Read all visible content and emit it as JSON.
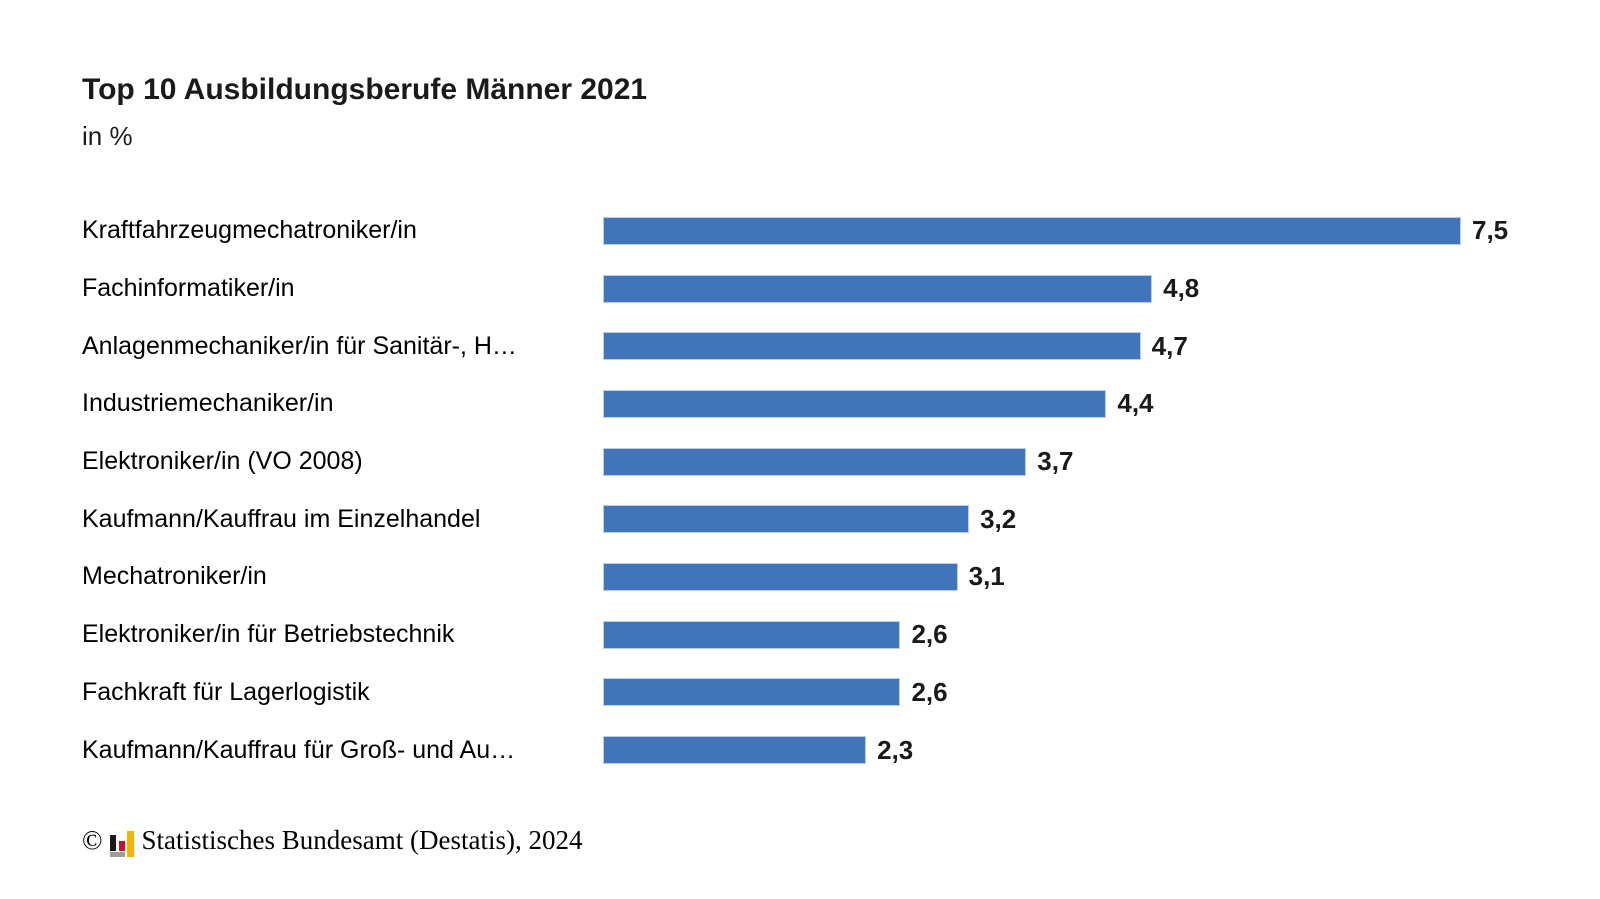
{
  "header": {
    "title": "Top 10 Ausbildungsberufe Männer 2021",
    "subtitle": "in %"
  },
  "chart_data": {
    "type": "bar",
    "orientation": "horizontal",
    "title": "Top 10 Ausbildungsberufe Männer 2021",
    "subtitle": "in %",
    "unit": "%",
    "xlabel": "",
    "ylabel": "",
    "xlim": [
      0,
      7.5
    ],
    "grid": false,
    "legend": false,
    "categories": [
      "Kraftfahrzeugmechatroniker/in",
      "Fachinformatiker/in",
      "Anlagenmechaniker/in für Sanitär-, H…",
      "Industriemechaniker/in",
      "Elektroniker/in (VO 2008)",
      "Kaufmann/Kauffrau im Einzelhandel",
      "Mechatroniker/in",
      "Elektroniker/in für Betriebstechnik",
      "Fachkraft für Lagerlogistik",
      "Kaufmann/Kauffrau für Groß- und Au…"
    ],
    "values": [
      7.5,
      4.8,
      4.7,
      4.4,
      3.7,
      3.2,
      3.1,
      2.6,
      2.6,
      2.3
    ],
    "value_labels": [
      "7,5",
      "4,8",
      "4,7",
      "4,4",
      "3,7",
      "3,2",
      "3,1",
      "2,6",
      "2,6",
      "2,3"
    ]
  },
  "colors": {
    "bar": "#4274b9",
    "bar_border": "#b9cfe7",
    "text": "#1a1a1a",
    "logo_black": "#1a1a1a",
    "logo_red": "#c41230",
    "logo_yellow": "#f7b500",
    "logo_gray": "#9d9d9c"
  },
  "footer": {
    "copyright_symbol": "©",
    "logo_icon": "destatis-bar-chart-icon",
    "source_text": "Statistisches Bundesamt (Destatis), 2024"
  }
}
